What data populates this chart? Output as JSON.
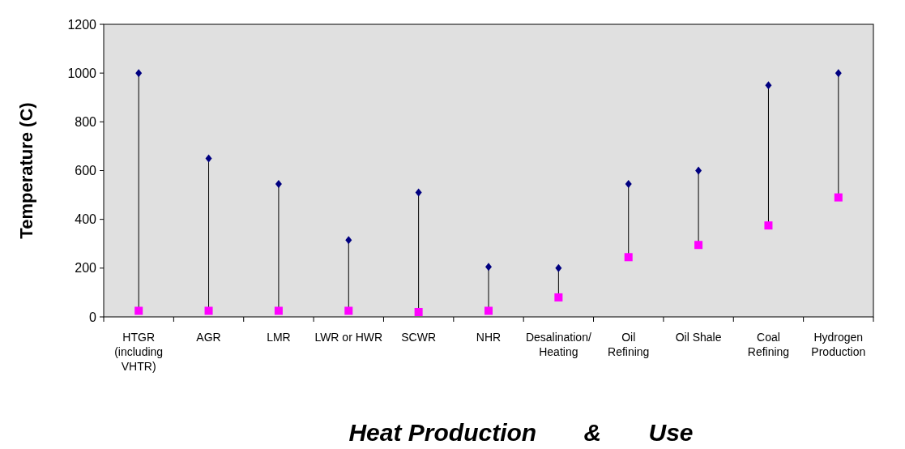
{
  "chart_data": {
    "type": "scatter",
    "xlabel": "Heat Production       &       Use",
    "ylabel": "Temperature (C)",
    "categories": [
      "HTGR (including VHTR)",
      "AGR",
      "LMR",
      "LWR or HWR",
      "SCWR",
      "NHR",
      "Desalination/ Heating",
      "Oil Refining",
      "Oil Shale",
      "Coal Refining",
      "Hydrogen Production"
    ],
    "series": [
      {
        "color": "#000080",
        "marker": "diamond",
        "values": [
          1000,
          650,
          545,
          315,
          510,
          205,
          200,
          545,
          600,
          950,
          1000
        ]
      },
      {
        "color": "#ff00ff",
        "marker": "square",
        "values": [
          25,
          25,
          25,
          25,
          20,
          25,
          80,
          245,
          295,
          375,
          490
        ]
      }
    ],
    "ylim": [
      0,
      1200
    ],
    "yticks": [
      0,
      200,
      400,
      600,
      800,
      1000,
      1200
    ]
  }
}
